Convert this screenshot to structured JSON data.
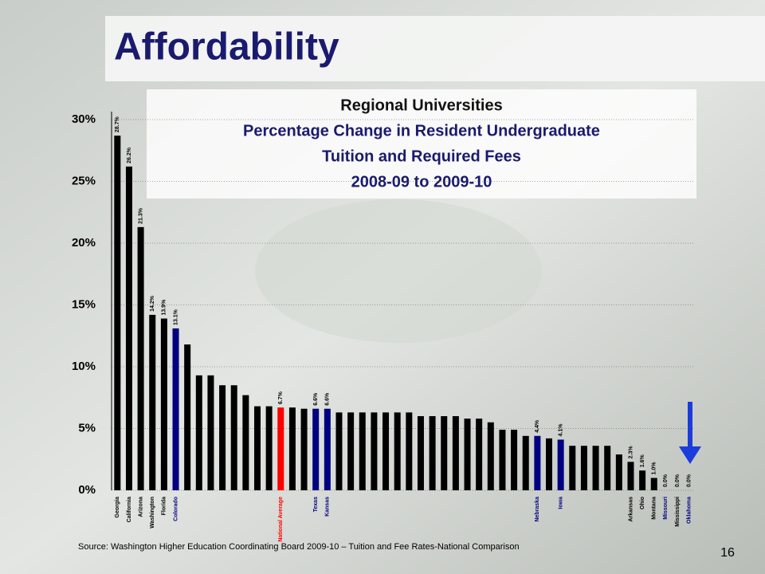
{
  "slide_title": "Affordability",
  "source": "Source: Washington Higher Education Coordinating Board 2009-10 – Tuition and Fee Rates-National Comparison",
  "page_number": "16",
  "chart_data": {
    "type": "bar",
    "title_lines": [
      "Regional Universities",
      "Percentage Change in Resident Undergraduate",
      "Tuition and Required Fees",
      "2008-09 to 2009-10"
    ],
    "categories": [
      "Georgia",
      "California",
      "Arizona",
      "Washington",
      "Florida",
      "Colorado",
      null,
      null,
      null,
      null,
      null,
      null,
      null,
      null,
      "National Average",
      null,
      null,
      "Texas",
      "Kansas",
      null,
      null,
      null,
      null,
      null,
      null,
      null,
      null,
      null,
      null,
      null,
      null,
      null,
      null,
      null,
      null,
      null,
      "Nebraska",
      null,
      "Iowa",
      null,
      null,
      null,
      null,
      null,
      "Arkansas",
      "Ohio",
      "Montana",
      "Missouri",
      "Mississippi",
      "Oklahoma"
    ],
    "values": [
      28.7,
      26.2,
      21.3,
      14.2,
      13.9,
      13.1,
      11.8,
      9.3,
      9.3,
      8.5,
      8.5,
      7.7,
      6.8,
      6.8,
      6.7,
      6.7,
      6.6,
      6.6,
      6.6,
      6.3,
      6.3,
      6.3,
      6.3,
      6.3,
      6.3,
      6.3,
      6.0,
      6.0,
      6.0,
      6.0,
      5.8,
      5.8,
      5.5,
      4.9,
      4.9,
      4.4,
      4.4,
      4.2,
      4.1,
      3.6,
      3.6,
      3.6,
      3.6,
      2.9,
      2.3,
      1.6,
      1.0,
      0.0,
      0.0,
      0.0
    ],
    "value_labels": [
      "28.7%",
      "26.2%",
      "21.3%",
      "14.2%",
      "13.9%",
      "13.1%",
      null,
      null,
      null,
      null,
      null,
      null,
      null,
      null,
      "6.7%",
      null,
      null,
      "6.6%",
      "6.6%",
      null,
      null,
      null,
      null,
      null,
      null,
      null,
      null,
      null,
      null,
      null,
      null,
      null,
      null,
      null,
      null,
      null,
      "4.4%",
      null,
      "4.1%",
      null,
      null,
      null,
      null,
      null,
      "2.3%",
      "1.6%",
      "1.0%",
      "0.0%",
      "0.0%",
      "0.0%"
    ],
    "colors": [
      "#000000",
      "#000000",
      "#000000",
      "#000000",
      "#000000",
      "#000080",
      "#000000",
      "#000000",
      "#000000",
      "#000000",
      "#000000",
      "#000000",
      "#000000",
      "#000000",
      "#ff0000",
      "#000000",
      "#000000",
      "#000080",
      "#000080",
      "#000000",
      "#000000",
      "#000000",
      "#000000",
      "#000000",
      "#000000",
      "#000000",
      "#000000",
      "#000000",
      "#000000",
      "#000000",
      "#000000",
      "#000000",
      "#000000",
      "#000000",
      "#000000",
      "#000000",
      "#000080",
      "#000000",
      "#000080",
      "#000000",
      "#000000",
      "#000000",
      "#000000",
      "#000000",
      "#000000",
      "#000000",
      "#000000",
      "#000080",
      "#000000",
      "#000080"
    ],
    "ylim": [
      0,
      30
    ],
    "yticks": [
      {
        "value": 0,
        "label": "0%"
      },
      {
        "value": 5,
        "label": "5%"
      },
      {
        "value": 10,
        "label": "10%"
      },
      {
        "value": 15,
        "label": "15%"
      },
      {
        "value": 20,
        "label": "20%"
      },
      {
        "value": 25,
        "label": "25%"
      },
      {
        "value": 30,
        "label": "30%"
      }
    ],
    "grid": true
  }
}
